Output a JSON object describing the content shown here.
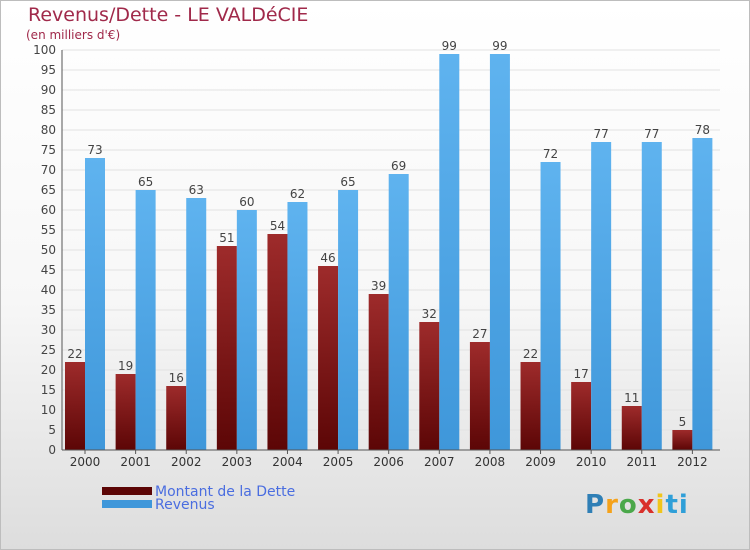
{
  "title": "Revenus/Dette - LE VALDéCIE",
  "subtitle": "(en milliers d'€)",
  "logo_text": "Proxiti",
  "chart_data": {
    "type": "bar",
    "categories": [
      "2000",
      "2001",
      "2002",
      "2003",
      "2004",
      "2005",
      "2006",
      "2007",
      "2008",
      "2009",
      "2010",
      "2011",
      "2012"
    ],
    "series": [
      {
        "name": "Montant de la Dette",
        "values": [
          22,
          19,
          16,
          51,
          54,
          46,
          39,
          32,
          27,
          22,
          17,
          11,
          5
        ],
        "color": "#8a1c1c"
      },
      {
        "name": "Revenus",
        "values": [
          73,
          65,
          63,
          60,
          62,
          65,
          69,
          99,
          99,
          72,
          77,
          77,
          78
        ],
        "color": "#4da6e8"
      }
    ],
    "ylim": [
      0,
      100
    ],
    "yticks": [
      0,
      5,
      10,
      15,
      20,
      25,
      30,
      35,
      40,
      45,
      50,
      55,
      60,
      65,
      70,
      75,
      80,
      85,
      90,
      95,
      100
    ],
    "grid": true,
    "legend": "bottom-left"
  }
}
